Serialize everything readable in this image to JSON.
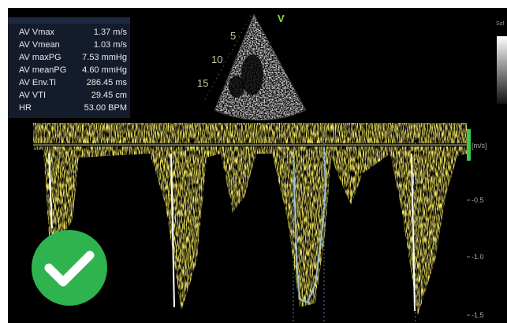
{
  "measurements": {
    "rows": [
      {
        "label": "AV Vmax",
        "value": "1.37 m/s"
      },
      {
        "label": "AV Vmean",
        "value": "1.03 m/s"
      },
      {
        "label": "AV maxPG",
        "value": "7.53 mmHg"
      },
      {
        "label": "AV meanPG",
        "value": "4.60 mmHg"
      },
      {
        "label": "AV Env.Ti",
        "value": "286.45 ms"
      },
      {
        "label": "AV VTI",
        "value": "29.45 cm"
      },
      {
        "label": "HR",
        "value": "53.00 BPM"
      }
    ]
  },
  "sector": {
    "marker": "V",
    "depth_labels": [
      "5",
      "10",
      "15"
    ]
  },
  "side_panel": {
    "label": "Sof"
  },
  "doppler": {
    "unit": "[m/s]",
    "scale_labels": [
      "-0.5",
      "-1.0",
      "-1.5"
    ]
  }
}
